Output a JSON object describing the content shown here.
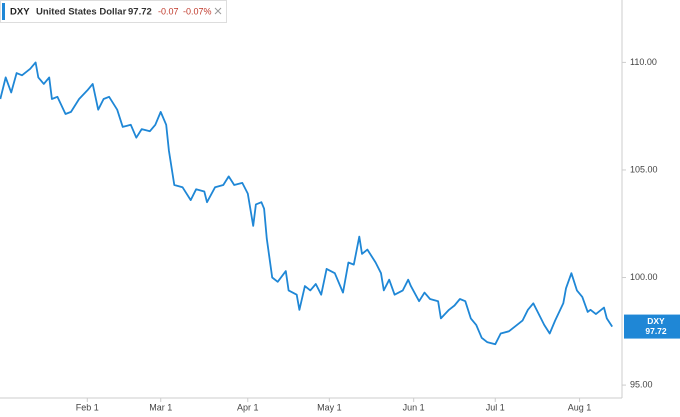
{
  "header": {
    "symbol": "DXY",
    "name": "United States Dollar",
    "price": "97.72",
    "change": "-0.07",
    "change_percent": "-0.07%"
  },
  "chart_data": {
    "type": "line",
    "x": [
      0,
      2,
      4,
      6,
      8,
      11,
      13,
      14,
      16,
      18,
      19,
      21,
      24,
      26,
      29,
      32,
      34,
      36,
      38,
      40,
      43,
      45,
      48,
      50,
      52,
      55,
      57,
      59,
      61,
      62,
      64,
      67,
      70,
      72,
      75,
      76,
      79,
      82,
      84,
      86,
      89,
      91,
      93,
      94,
      96,
      97,
      98,
      100,
      102,
      105,
      106,
      109,
      110,
      112,
      114,
      116,
      118,
      120,
      123,
      126,
      128,
      130,
      132,
      133,
      135,
      138,
      140,
      141,
      143,
      145,
      148,
      150,
      151,
      154,
      156,
      158,
      161,
      162,
      165,
      167,
      169,
      171,
      173,
      175,
      177,
      179,
      182,
      184,
      187,
      190,
      192,
      194,
      196,
      198,
      200,
      202,
      204,
      207,
      208,
      210,
      212,
      214,
      216,
      217,
      219,
      222,
      223,
      225
    ],
    "series": [
      {
        "name": "DXY",
        "color": "#1f87d6",
        "values": [
          108.3,
          109.3,
          108.6,
          109.5,
          109.4,
          109.7,
          110.0,
          109.3,
          109.0,
          109.3,
          108.3,
          108.4,
          107.6,
          107.7,
          108.3,
          108.7,
          109.0,
          107.8,
          108.3,
          108.4,
          107.8,
          107.0,
          107.1,
          106.5,
          106.9,
          106.8,
          107.1,
          107.7,
          107.1,
          105.9,
          104.3,
          104.2,
          103.6,
          104.1,
          104.0,
          103.5,
          104.2,
          104.3,
          104.7,
          104.3,
          104.4,
          103.9,
          102.4,
          103.4,
          103.5,
          103.2,
          101.8,
          100.0,
          99.8,
          100.3,
          99.4,
          99.2,
          98.5,
          99.6,
          99.4,
          99.7,
          99.2,
          100.4,
          100.2,
          99.3,
          100.7,
          100.6,
          101.9,
          101.1,
          101.3,
          100.7,
          100.2,
          99.4,
          99.9,
          99.2,
          99.4,
          99.9,
          99.6,
          98.9,
          99.3,
          99.0,
          98.9,
          98.1,
          98.5,
          98.7,
          99.0,
          98.9,
          98.1,
          97.8,
          97.2,
          97.0,
          96.9,
          97.4,
          97.5,
          97.8,
          98.0,
          98.5,
          98.8,
          98.3,
          97.8,
          97.4,
          98.0,
          98.8,
          99.5,
          100.2,
          99.4,
          99.1,
          98.4,
          98.5,
          98.3,
          98.6,
          98.1,
          97.72
        ]
      }
    ],
    "xlim": [
      -0.1,
      228.6
    ],
    "ylim": [
      94.4,
      112.9
    ],
    "xticks": [
      {
        "value": 32,
        "label": "Feb 1"
      },
      {
        "value": 59,
        "label": "Mar 1"
      },
      {
        "value": 91,
        "label": "Apr 1"
      },
      {
        "value": 121,
        "label": "May 1"
      },
      {
        "value": 152,
        "label": "Jun 1"
      },
      {
        "value": 182,
        "label": "Jul 1"
      },
      {
        "value": 213,
        "label": "Aug 1"
      }
    ],
    "yticks": [
      {
        "value": 95,
        "label": "95.00"
      },
      {
        "value": 100,
        "label": "100.00"
      },
      {
        "value": 105,
        "label": "105.00"
      },
      {
        "value": 110,
        "label": "110.00"
      }
    ]
  }
}
